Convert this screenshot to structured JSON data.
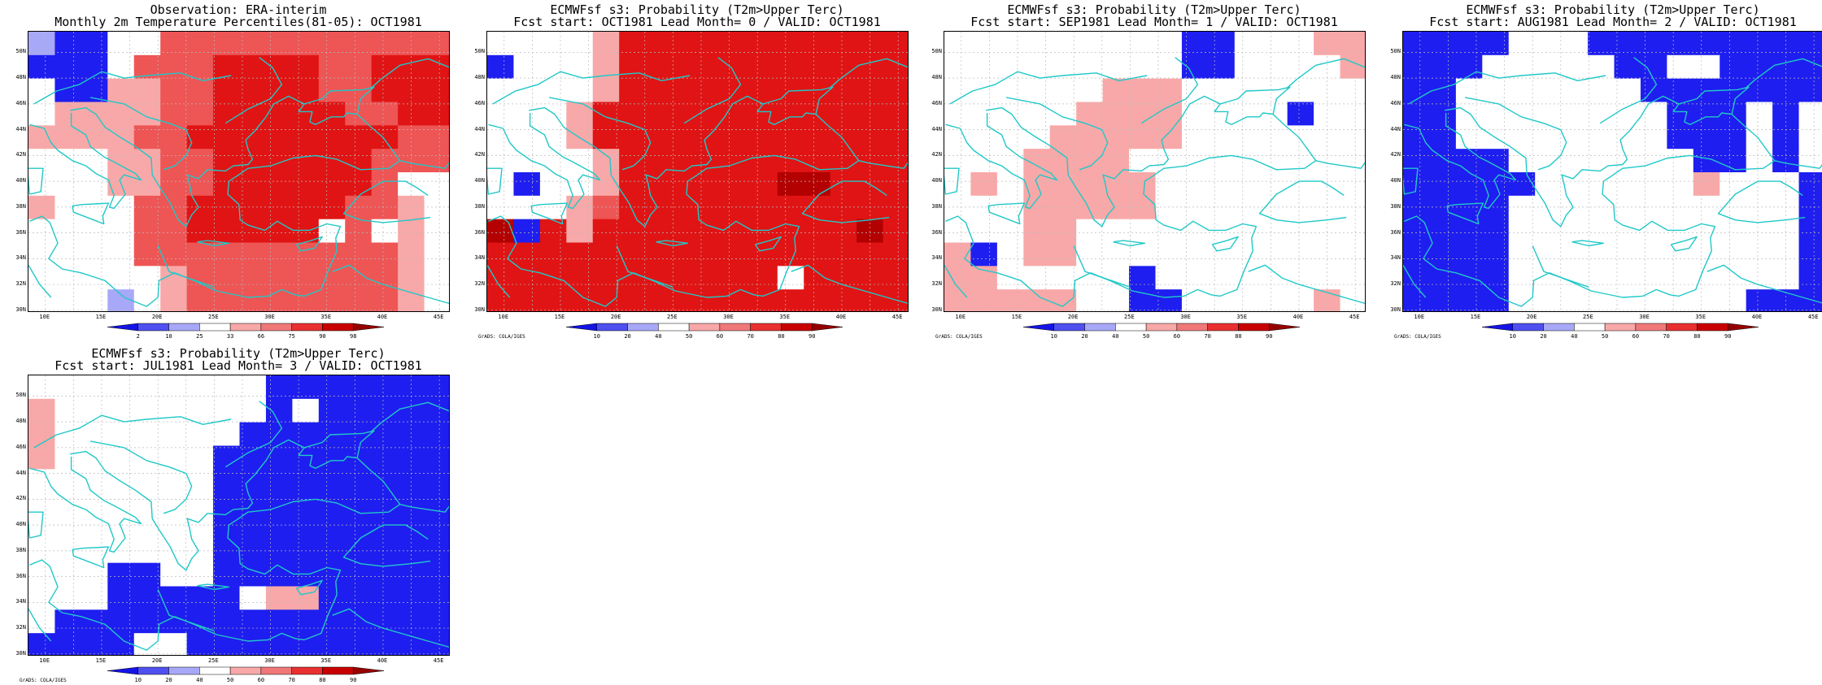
{
  "panels": [
    {
      "title1": "Observation: ERA-interim",
      "title2": "Monthly 2m Temperature Percentiles(81-05): OCT1981",
      "colorbar_labels": [
        "2",
        "10",
        "25",
        "33",
        "66",
        "75",
        "90",
        "98"
      ],
      "credit": "",
      "grid": [
        "lbbwwrrrrrrrrrrr",
        "bbbwrrrRRRRrrRRR",
        "wbbpprrRRRRrrRRR",
        "wpppprrRRRRRrrRR",
        "pppprrRRRRRRRRrr",
        "wwwpprrRRRRRRrrr",
        "wwwpprrRRRRRRrww",
        "pwwwrrRRRRRRrrpw",
        "wwwwrrRRRRRwrwpw",
        "wwwwrrrrrrrrrrpw",
        "wwwwwprrrrrrrrpw",
        "wwwlwprrrrrrrrpw"
      ]
    },
    {
      "title1": "ECMWFsf s3: Probability (T2m>Upper Terc)",
      "title2": "Fcst start: OCT1981   Lead Month= 0 / VALID: OCT1981",
      "colorbar_labels": [
        "10",
        "20",
        "40",
        "50",
        "60",
        "70",
        "80",
        "90"
      ],
      "credit": "GrADS: COLA/IGES",
      "grid": [
        "wwwwpRRRRRRRRRRR",
        "bwwwpRRRRRRRRRRR",
        "wwwwpRRRRRRRRRRR",
        "wwwpRRRRRRRRRRRR",
        "wwwpRRRRRRRRRRRR",
        "wwwwpRRRRRRRRRRR",
        "wbwwpRRRRRRDDRRR",
        "wwwprRRRRRRRRRRR",
        "DbRpRRRRRRRRRRDR",
        "RRRRRRRRRRRRRRRR",
        "RRRRRRRRRRRwRRRR",
        "RRRRRRRRRRRRRRRR"
      ]
    },
    {
      "title1": "ECMWFsf s3: Probability (T2m>Upper Terc)",
      "title2": "Fcst start: SEP1981   Lead Month= 1 / VALID: OCT1981",
      "colorbar_labels": [
        "10",
        "20",
        "40",
        "50",
        "60",
        "70",
        "80",
        "90"
      ],
      "credit": "GrADS: COLA/IGES",
      "grid": [
        "wwwwwwwwwbbwwwpp",
        "wwwwwwwwwbbwwwwp",
        "wwwwwwpppwwwwwww",
        "wwwwwppppwwwwbww",
        "wwwwpppppwwwwwww",
        "wwwppppwwwwwwwww",
        "wpwpppppwwwwwwww",
        "wwwpppppwwwwwwww",
        "wwwppwwwwwwwwwww",
        "pbwppwwwwwwwwwww",
        "ppwwwwwbwwwwwwww",
        "pppppwwbbwwwwwpw"
      ]
    },
    {
      "title1": "ECMWFsf s3: Probability (T2m>Upper Terc)",
      "title2": "Fcst start: AUG1981   Lead Month= 2 / VALID: OCT1981",
      "colorbar_labels": [
        "10",
        "20",
        "40",
        "50",
        "60",
        "70",
        "80",
        "90"
      ],
      "credit": "GrADS: COLA/IGES",
      "grid": [
        "bbbbwwwbbbbbbbbb",
        "bbbwwwwwbbwwbbbb",
        "bbwwwwwwwbbbbbbb",
        "bbwwwwwwwwbbbwbw",
        "bbwwwwwwwwbbbwbw",
        "bbbbwwwwwwwbbwbw",
        "bbbbbwwwwwwpwwwb",
        "bbbbwwwwwwwwwwwb",
        "bbbbwwwwwwwwwwwb",
        "bbbbwwwwwwwwwwwb",
        "bbbbwwwwwwwwwwwb",
        "bbbbwwwwwwwwwbbb"
      ]
    },
    {
      "title1": "ECMWFsf s3: Probability (T2m>Upper Terc)",
      "title2": "Fcst start: JUL1981   Lead Month= 3 / VALID: OCT1981",
      "colorbar_labels": [
        "10",
        "20",
        "40",
        "50",
        "60",
        "70",
        "80",
        "90"
      ],
      "credit": "GrADS: COLA/IGES",
      "grid": [
        "wwwwwwwwwbbbbbbb",
        "pwwwwwwwwbwbbbbb",
        "pwwwwwwwbbbbbbbb",
        "pwwwwwwbbbbbbbbb",
        "wwwwwwwbbbbbbbbb",
        "wwwwwwwbbbbbbbbb",
        "wwwwwwwbbbbbbbbb",
        "wwwwwwwbbbbbbbbb",
        "wwwbbwwbbbbbbbbb",
        "wwwbbbbbwppbbbbb",
        "wbbbbbbbbbbbbbbb",
        "bbbbwwbbbbbbbbbb"
      ]
    }
  ],
  "x_tick_labels": [
    "10E",
    "15E",
    "20E",
    "25E",
    "30E",
    "35E",
    "40E",
    "45E"
  ],
  "y_tick_labels": [
    "30N",
    "32N",
    "34N",
    "36N",
    "38N",
    "40N",
    "42N",
    "44N",
    "46N",
    "48N",
    "50N"
  ],
  "colors": {
    "D": "#b30000",
    "R": "#e01414",
    "r": "#ee5555",
    "p": "#f8a8a8",
    "w": "#ffffff",
    "l": "#a8a8f8",
    "b": "#1e1ef0",
    "coast": "#20c8c8",
    "gridline": "#bbbbbb"
  },
  "colorbar_colors": [
    "#1414e6",
    "#5050f0",
    "#a8a8f8",
    "#ffffff",
    "#f8a8a8",
    "#f07878",
    "#e83030",
    "#c80000",
    "#960000"
  ]
}
